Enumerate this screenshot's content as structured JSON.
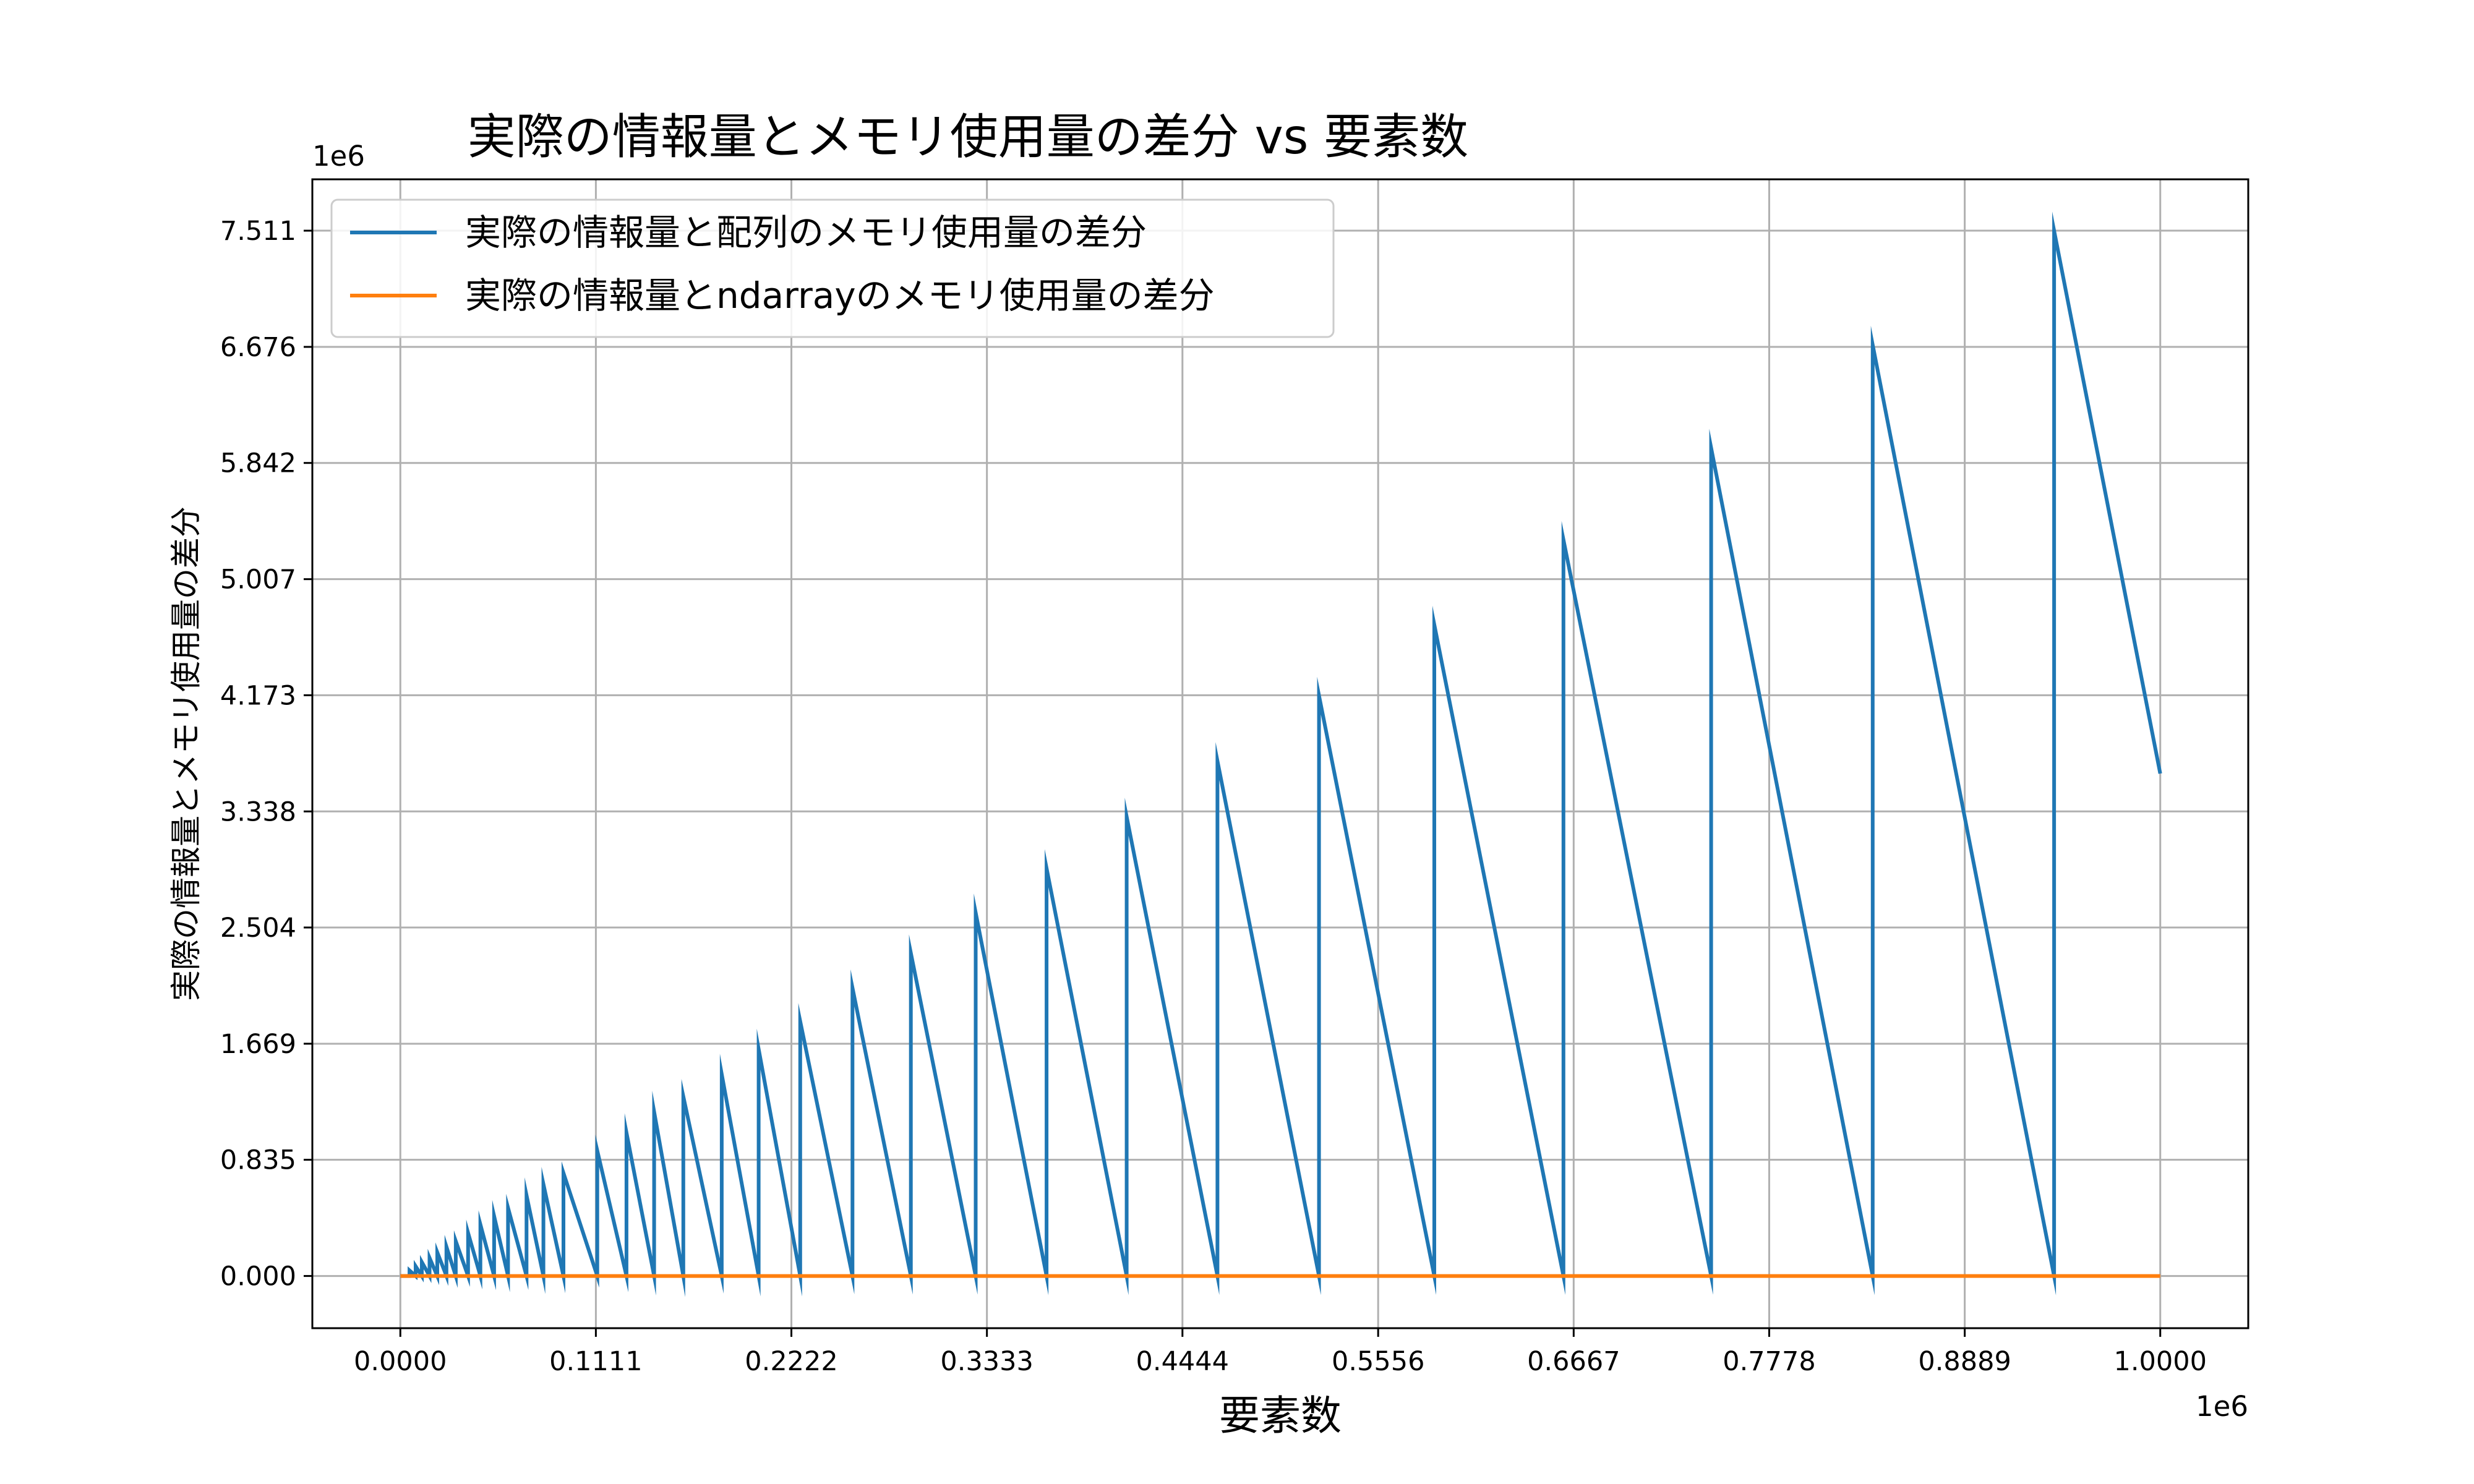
{
  "chart_data": {
    "type": "line",
    "title": "実際の情報量とメモリ使用量の差分 vs 要素数",
    "xlabel": "要素数",
    "ylabel": "実際の情報量とメモリ使用量の差分",
    "x_offset_label": "1e6",
    "y_offset_label": "1e6",
    "xlim": [
      -0.05,
      1.05
    ],
    "ylim": [
      -0.375,
      7.88
    ],
    "x_ticks": [
      0.0,
      0.1111,
      0.2222,
      0.3333,
      0.4444,
      0.5556,
      0.6667,
      0.7778,
      0.8889,
      1.0
    ],
    "x_tick_labels": [
      "0.0000",
      "0.1111",
      "0.2222",
      "0.3333",
      "0.4444",
      "0.5556",
      "0.6667",
      "0.7778",
      "0.8889",
      "1.0000"
    ],
    "y_ticks": [
      0.0,
      0.835,
      1.669,
      2.504,
      3.338,
      4.173,
      5.007,
      5.842,
      6.676,
      7.511
    ],
    "y_tick_labels": [
      "0.000",
      "0.835",
      "1.669",
      "2.504",
      "3.338",
      "4.173",
      "5.007",
      "5.842",
      "6.676",
      "7.511"
    ],
    "grid": true,
    "legend_position": "top-left",
    "series": [
      {
        "name": "実際の情報量と配列のメモリ使用量の差分",
        "color": "#1f77b4",
        "peaks": [
          [
            0.0,
            0.0
          ],
          [
            0.0052,
            0.04
          ],
          [
            0.0087,
            0.07
          ],
          [
            0.0122,
            0.1
          ],
          [
            0.0166,
            0.13
          ],
          [
            0.021,
            0.17
          ],
          [
            0.0262,
            0.21
          ],
          [
            0.0315,
            0.25
          ],
          [
            0.0385,
            0.31
          ],
          [
            0.0455,
            0.37
          ],
          [
            0.0533,
            0.43
          ],
          [
            0.0612,
            0.49
          ],
          [
            0.0717,
            0.58
          ],
          [
            0.0813,
            0.66
          ],
          [
            0.0927,
            0.74
          ],
          [
            0.1119,
            0.9
          ],
          [
            0.1285,
            1.03
          ],
          [
            0.1442,
            1.18
          ],
          [
            0.1608,
            1.29
          ],
          [
            0.1826,
            1.45
          ],
          [
            0.2036,
            1.63
          ],
          [
            0.2272,
            1.83
          ],
          [
            0.2569,
            2.07
          ],
          [
            0.2901,
            2.32
          ],
          [
            0.3269,
            2.61
          ],
          [
            0.3672,
            2.93
          ],
          [
            0.4127,
            3.3
          ],
          [
            0.4643,
            3.7
          ],
          [
            0.522,
            4.17
          ],
          [
            0.5875,
            4.68
          ],
          [
            0.6609,
            5.29
          ],
          [
            0.7448,
            5.95
          ],
          [
            0.8366,
            6.69
          ],
          [
            0.9397,
            7.511
          ],
          [
            1.0,
            3.61
          ]
        ]
      },
      {
        "name": "実際の情報量とndarrayのメモリ使用量の差分",
        "color": "#ff7f0e",
        "x": [
          0.0,
          1.0
        ],
        "y": [
          0.0,
          0.0
        ]
      }
    ]
  }
}
